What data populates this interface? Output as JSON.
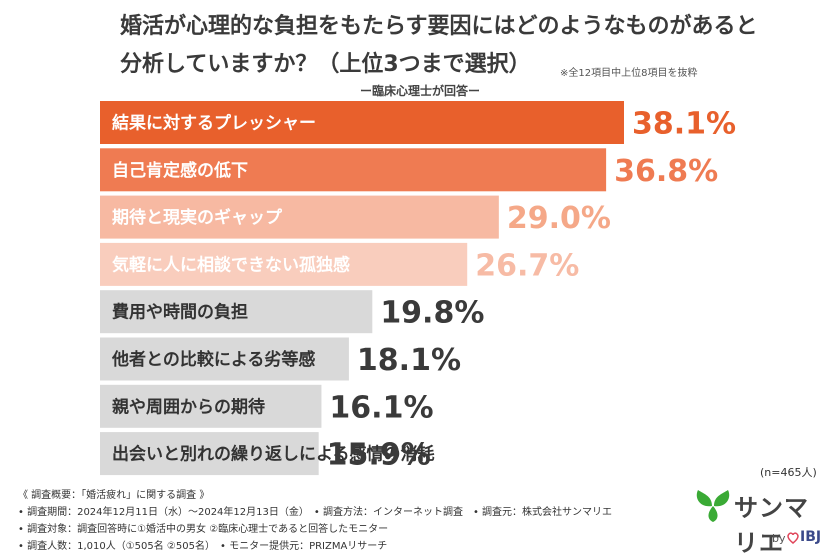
{
  "title_line1": "婚活が心理的な負担をもたらす要因にはどのようなものがあると",
  "title_line2": "分析していますか？（上位3つまで選択）",
  "note": "※全12項目中上位8項目を抜粋",
  "respondent": "ー臨床心理士が回答ー",
  "sample_size": "(n=465人)",
  "chart_data": {
    "type": "bar",
    "orientation": "horizontal",
    "categories": [
      "結果に対するプレッシャー",
      "自己肯定感の低下",
      "期待と現実のギャップ",
      "気軽に人に相談できない孤独感",
      "費用や時間の負担",
      "他者との比較による劣等感",
      "親や周囲からの期待",
      "出会いと別れの繰り返しによる感情の消耗"
    ],
    "values": [
      38.1,
      36.8,
      29.0,
      26.7,
      19.8,
      18.1,
      16.1,
      15.9
    ],
    "value_labels": [
      "38.1%",
      "36.8%",
      "29.0%",
      "26.7%",
      "19.8%",
      "18.1%",
      "16.1%",
      "15.9%"
    ],
    "unit": "%",
    "xlim": [
      0,
      38.1
    ],
    "bar_colors": [
      "#e8602c",
      "#ef7b52",
      "#f7b9a2",
      "#f9cdbd",
      "#d9d9d9",
      "#d9d9d9",
      "#d9d9d9",
      "#d9d9d9"
    ],
    "label_colors": [
      "#ffffff",
      "#ffffff",
      "#ffffff",
      "#ffffff",
      "#333333",
      "#333333",
      "#333333",
      "#333333"
    ],
    "value_colors": [
      "#e8602c",
      "#ef7b52",
      "#f5a888",
      "#f7bba5",
      "#3a3a3a",
      "#3a3a3a",
      "#3a3a3a",
      "#3a3a3a"
    ],
    "grid": false,
    "legend": "none"
  },
  "footer": {
    "line1": "《 調査概要：「婚活疲れ」に関する調査 》",
    "line2": "• 調査期間：2024年12月11日（水）〜2024年12月13日（金）　• 調査方法：インターネット調査　• 調査元：株式会社サンマリエ",
    "line3": "• 調査対象：調査回答時に①婚活中の男女 ②臨床心理士であると回答したモニター",
    "line4": "• 調査人数：1,010人（①505名 ②505名）　• モニター提供元：PRIZMAリサーチ"
  },
  "brand": {
    "name": "サンマリエ",
    "by": "by",
    "sub": "IBJ",
    "leaf_color": "#3aaa35",
    "heart_color": "#e0455a"
  }
}
